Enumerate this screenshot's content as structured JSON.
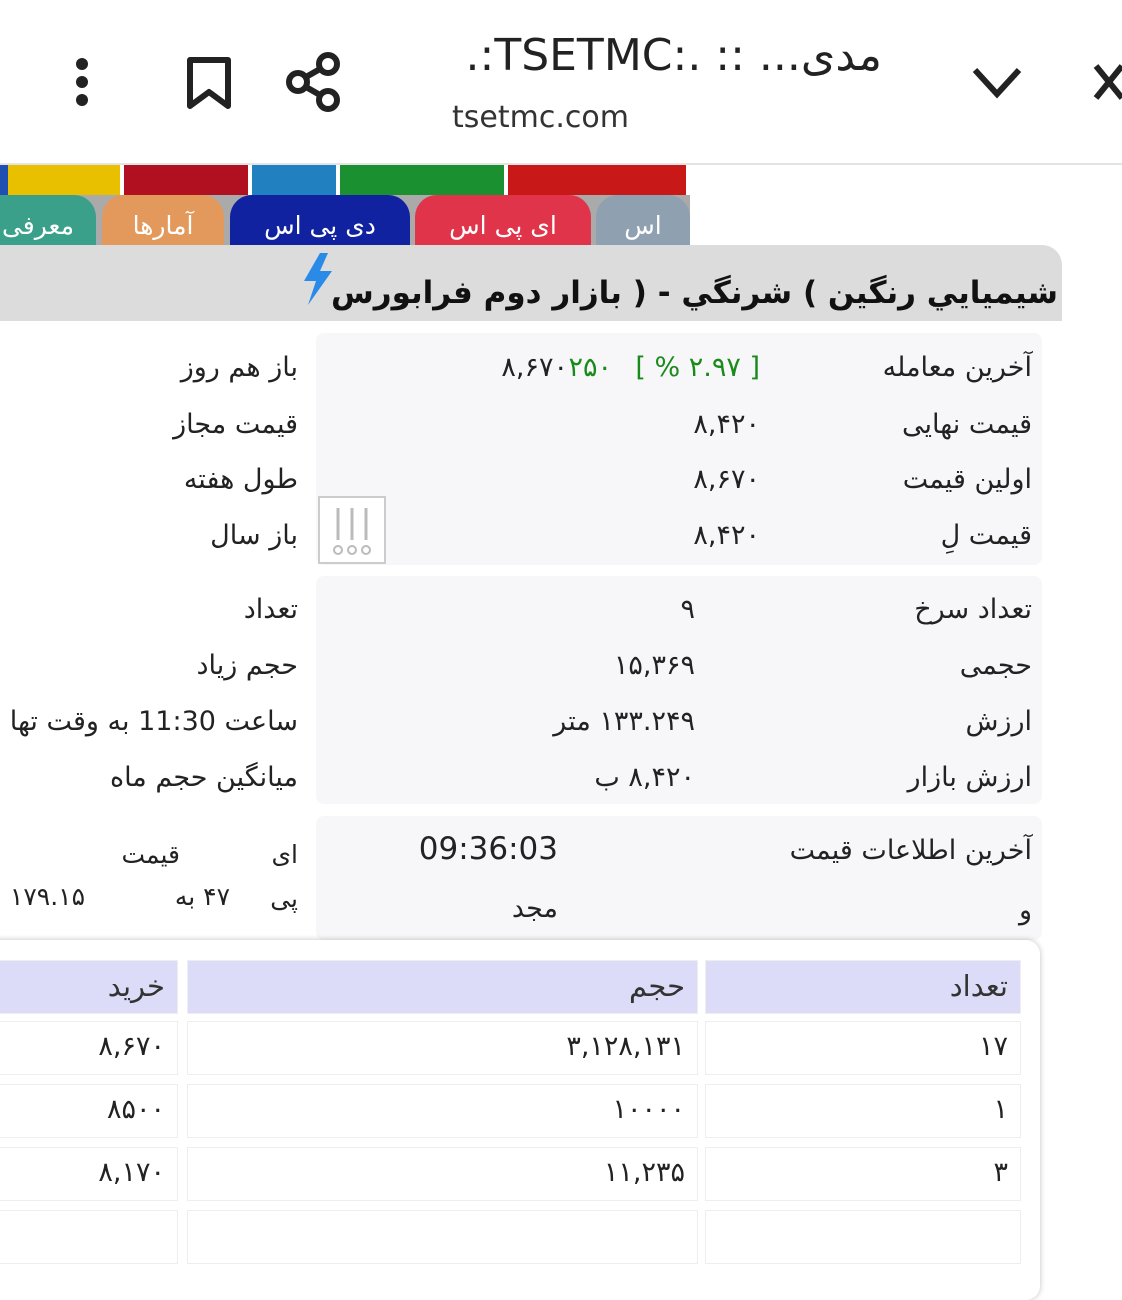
{
  "browser": {
    "title": "مدی... :: .:TSETMC:.",
    "url": "tsetmc.com"
  },
  "tabs": [
    "اس",
    "ای پی اس",
    "دی پی اس",
    "آمارها",
    "معرفی"
  ],
  "header": {
    "title": "شيميايي رنگين ) شرنگي - ( بازار دوم فرابورس"
  },
  "price": {
    "rows": [
      {
        "label": "آخرین معامله",
        "value": "۸,۶۷۰",
        "change": "۲۵۰",
        "percent": "[ ۲.۹۷ % ]"
      },
      {
        "label": "قیمت نهایی",
        "value": "۸,۴۲۰"
      },
      {
        "label": "اولین قیمت",
        "value": "۸,۶۷۰"
      },
      {
        "label": "قیمت لِ",
        "value": "۸,۴۲۰"
      }
    ],
    "side": [
      "باز هم روز",
      "قیمت مجاز",
      "طول هفته",
      "باز سال"
    ]
  },
  "trade": {
    "rows": [
      {
        "label": "تعداد سرخ",
        "value": "۹"
      },
      {
        "label": "حجمی",
        "value": "۱۵,۳۶۹"
      },
      {
        "label": "ارزش",
        "value": "۱۳۳.۲۴۹ متر"
      },
      {
        "label": "ارزش بازار",
        "value": "۸,۴۲۰ ب"
      }
    ],
    "side": [
      "تعداد",
      "حجم زیاد",
      "ساعت 11:30 به وقت تها",
      "میانگین حجم ماه"
    ]
  },
  "info": {
    "label": "آخرین اطلاعات قیمت",
    "time": "09:36:03",
    "label2": "و",
    "value2": "مجد",
    "side": [
      "ای",
      "قیمت",
      "پی",
      "۴۷ به",
      "۱۷۹.۱۵"
    ]
  },
  "table": {
    "headers": [
      "تعداد",
      "حجم",
      "خرید"
    ],
    "rows": [
      [
        "۱۷",
        "۳,۱۲۸,۱۳۱",
        "۸,۶۷۰"
      ],
      [
        "۱",
        "۱۰۰۰۰",
        "۸۵۰۰"
      ],
      [
        "۳",
        "۱۱,۲۳۵",
        "۸,۱۷۰"
      ]
    ]
  }
}
